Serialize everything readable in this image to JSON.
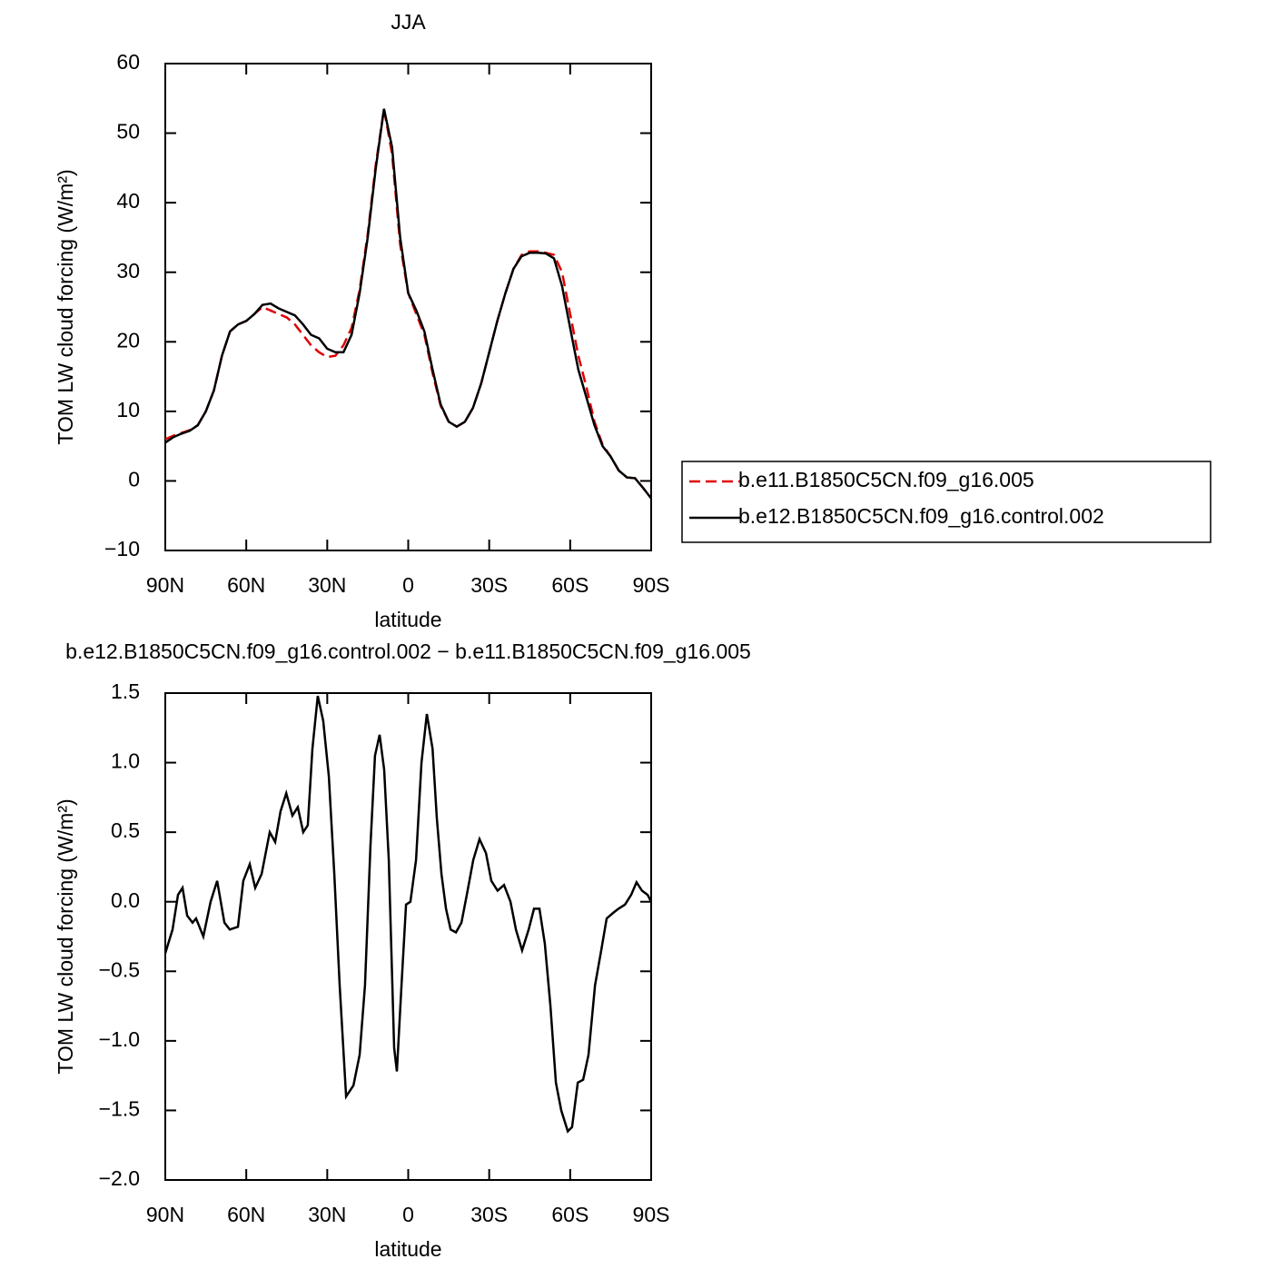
{
  "chart_data": [
    {
      "type": "line",
      "title": "JJA",
      "xlabel": "latitude",
      "ylabel": "TOM LW cloud forcing (W/m²)",
      "xlim": [
        90,
        -90
      ],
      "xticks": [
        {
          "value": 90,
          "label": "90N"
        },
        {
          "value": 60,
          "label": "60N"
        },
        {
          "value": 30,
          "label": "30N"
        },
        0,
        {
          "value": -30,
          "label": "30S"
        },
        {
          "value": -60,
          "label": "60S"
        },
        {
          "value": -90,
          "label": "90S"
        }
      ],
      "ylim": [
        -10,
        60
      ],
      "yticks": [
        {
          "value": -10,
          "label": "−10"
        },
        0,
        10,
        20,
        30,
        40,
        50,
        60
      ],
      "legend": "right",
      "x": [
        90,
        87,
        84,
        81,
        78,
        75,
        72,
        69,
        66,
        63,
        60,
        57,
        54,
        51,
        48,
        45,
        42,
        39,
        36,
        33,
        30,
        27,
        24,
        21,
        18,
        15,
        12,
        9,
        6,
        3,
        0,
        -3,
        -6,
        -9,
        -12,
        -15,
        -18,
        -21,
        -24,
        -27,
        -30,
        -33,
        -36,
        -39,
        -42,
        -45,
        -48,
        -51,
        -54,
        -57,
        -60,
        -63,
        -66,
        -69,
        -72,
        -75,
        -78,
        -81,
        -84,
        -87,
        -90
      ],
      "series": [
        {
          "name": "b.e11.B1850C5CN.f09_g16.005",
          "color": "#e00000",
          "linestyle": "dashed",
          "values": [
            6,
            6.5,
            6.9,
            7.3,
            8,
            10,
            13,
            18,
            21.5,
            22.5,
            23,
            24,
            25,
            24.5,
            24,
            23.5,
            22.5,
            21,
            19.5,
            18.5,
            17.8,
            18,
            19.5,
            22,
            27.5,
            35.5,
            45.5,
            53.5,
            47,
            34,
            27,
            24,
            21,
            15.5,
            10.8,
            8.5,
            7.8,
            8.5,
            10.5,
            14,
            18.5,
            23,
            27,
            30.5,
            32.5,
            33,
            33,
            32.8,
            32.5,
            30,
            24,
            18,
            13.5,
            8.5,
            5.2,
            3.5,
            1.5,
            0.5,
            0.4,
            -1,
            -2.5
          ]
        },
        {
          "name": "b.e12.B1850C5CN.f09_g16.control.002",
          "color": "#000000",
          "linestyle": "solid",
          "values": [
            5.5,
            6.3,
            6.8,
            7.2,
            8,
            10,
            13,
            18,
            21.5,
            22.5,
            23,
            24,
            25.3,
            25.5,
            24.8,
            24.3,
            23.8,
            22.5,
            21,
            20.5,
            19,
            18.5,
            18.5,
            21,
            27,
            35,
            45,
            53.5,
            48,
            35,
            27,
            24.5,
            21.5,
            16,
            11,
            8.5,
            7.8,
            8.5,
            10.5,
            14,
            18.5,
            23,
            27,
            30.5,
            32.3,
            32.8,
            32.8,
            32.7,
            32,
            28,
            22,
            16,
            12,
            8,
            5,
            3.5,
            1.5,
            0.5,
            0.4,
            -1,
            -2.5
          ]
        }
      ]
    },
    {
      "type": "line",
      "title": "b.e12.B1850C5CN.f09_g16.control.002 − b.e11.B1850C5CN.f09_g16.005",
      "xlabel": "latitude",
      "ylabel": "TOM LW cloud forcing (W/m²)",
      "xlim": [
        90,
        -90
      ],
      "xticks": [
        {
          "value": 90,
          "label": "90N"
        },
        {
          "value": 60,
          "label": "60N"
        },
        {
          "value": 30,
          "label": "30N"
        },
        0,
        {
          "value": -30,
          "label": "30S"
        },
        {
          "value": -60,
          "label": "60S"
        },
        {
          "value": -90,
          "label": "90S"
        }
      ],
      "ylim": [
        -2,
        1.5
      ],
      "yticks": [
        {
          "value": -2,
          "label": "−2.0"
        },
        {
          "value": -1.5,
          "label": "−1.5"
        },
        {
          "value": -1,
          "label": "−1.0"
        },
        {
          "value": -0.5,
          "label": "−0.5"
        },
        {
          "value": 0,
          "label": "0.0"
        },
        0.5,
        {
          "value": 1,
          "label": "1.0"
        },
        1.5
      ],
      "x": [
        90,
        87.3,
        85.3,
        83.6,
        81.9,
        79.9,
        78.6,
        75.9,
        73.2,
        70.8,
        68.1,
        66.1,
        63.1,
        61.1,
        58.7,
        56.7,
        54.3,
        51.3,
        49.3,
        47.3,
        45.2,
        42.9,
        40.9,
        38.9,
        37.2,
        35.5,
        33.5,
        31.5,
        29.4,
        27.4,
        25.4,
        23,
        20.3,
        18,
        16,
        14,
        12.3,
        10.6,
        8.9,
        7.2,
        5.2,
        4.2,
        2.5,
        0.8,
        -0.8,
        -2.9,
        -4.9,
        -6.9,
        -9,
        -10.6,
        -12.3,
        -14,
        -15.7,
        -17.7,
        -19.7,
        -21.7,
        -24.1,
        -26.4,
        -28.8,
        -30.8,
        -33.1,
        -35.5,
        -37.9,
        -39.9,
        -42.2,
        -44.6,
        -46.6,
        -48.6,
        -50.6,
        -52.7,
        -54.7,
        -56.7,
        -59.1,
        -60.7,
        -62.8,
        -64.8,
        -66.8,
        -69.2,
        -71.5,
        -73.5,
        -75.9,
        -77.9,
        -80.3,
        -82.6,
        -84.6,
        -86.6,
        -88.7,
        -90
      ],
      "series": [
        {
          "color": "#000000",
          "linestyle": "solid",
          "values": [
            -0.37,
            -0.2,
            0.05,
            0.1,
            -0.1,
            -0.15,
            -0.12,
            -0.25,
            0,
            0.15,
            -0.15,
            -0.2,
            -0.18,
            0.15,
            0.27,
            0.1,
            0.2,
            0.5,
            0.43,
            0.65,
            0.78,
            0.62,
            0.68,
            0.5,
            0.55,
            1.1,
            1.48,
            1.3,
            0.9,
            0.2,
            -0.6,
            -1.4,
            -1.32,
            -1.1,
            -0.6,
            0.4,
            1.05,
            1.2,
            0.95,
            0.3,
            -1.05,
            -1.22,
            -0.6,
            -0.02,
            0,
            0.3,
            1,
            1.35,
            1.1,
            0.6,
            0.2,
            -0.05,
            -0.2,
            -0.22,
            -0.15,
            0.05,
            0.3,
            0.45,
            0.35,
            0.15,
            0.08,
            0.12,
            0,
            -0.2,
            -0.35,
            -0.2,
            -0.05,
            -0.05,
            -0.3,
            -0.75,
            -1.3,
            -1.5,
            -1.65,
            -1.62,
            -1.3,
            -1.28,
            -1.1,
            -0.6,
            -0.35,
            -0.12,
            -0.08,
            -0.05,
            -0.02,
            0.05,
            0.14,
            0.08,
            0.05,
            0
          ]
        }
      ]
    }
  ]
}
